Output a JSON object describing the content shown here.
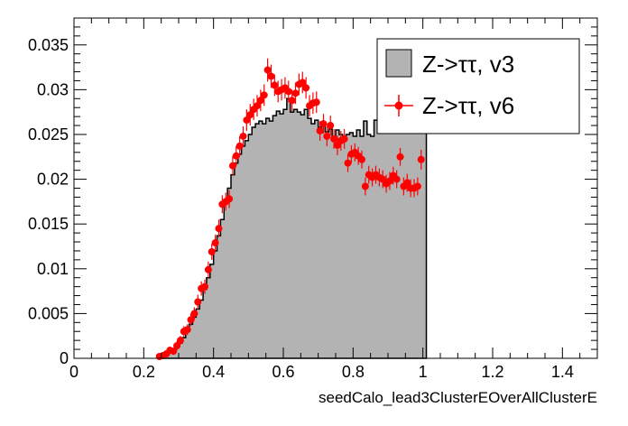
{
  "chart_data": {
    "type": "histogram",
    "title": "",
    "xlabel": "seedCalo_lead3ClusterEOverAllClusterE",
    "ylabel": "",
    "xlim": [
      0,
      1.5
    ],
    "ylim": [
      0,
      0.038
    ],
    "x_ticks": [
      0,
      0.2,
      0.4,
      0.6,
      0.8,
      1,
      1.2,
      1.4
    ],
    "x_tick_labels": [
      "0",
      "0.2",
      "0.4",
      "0.6",
      "0.8",
      "1",
      "1.2",
      "1.4"
    ],
    "y_ticks": [
      0,
      0.005,
      0.01,
      0.015,
      0.02,
      0.025,
      0.03,
      0.035
    ],
    "y_tick_labels": [
      "0",
      "0.005",
      "0.01",
      "0.015",
      "0.02",
      "0.025",
      "0.03",
      "0.035"
    ],
    "legend": {
      "position": "top-right",
      "entries": [
        "Z->ττ, v3",
        "Z->ττ, v6"
      ]
    },
    "series": [
      {
        "name": "Z->ττ, v3",
        "style": "filled-histogram",
        "color": "#b3b3b3",
        "bin_edges_start": 0.25,
        "bin_width": 0.01,
        "values": [
          0.0002,
          0.0004,
          0.0006,
          0.0008,
          0.0012,
          0.0017,
          0.0023,
          0.003,
          0.0038,
          0.0046,
          0.0055,
          0.0065,
          0.0077,
          0.009,
          0.0105,
          0.012,
          0.0137,
          0.0155,
          0.0173,
          0.019,
          0.0205,
          0.0218,
          0.0228,
          0.0237,
          0.0243,
          0.025,
          0.0258,
          0.0262,
          0.0265,
          0.0262,
          0.0268,
          0.0265,
          0.0271,
          0.0276,
          0.0273,
          0.0278,
          0.029,
          0.0275,
          0.0278,
          0.0275,
          0.0272,
          0.0278,
          0.0268,
          0.0262,
          0.0266,
          0.0258,
          0.0262,
          0.0253,
          0.0256,
          0.0248,
          0.0255,
          0.025,
          0.0246,
          0.025,
          0.0252,
          0.0248,
          0.0255,
          0.0248,
          0.0265,
          0.025,
          0.0248,
          0.0266,
          0.0257,
          0.0252,
          0.0265,
          0.0255,
          0.0262,
          0.0258,
          0.0265,
          0.0255,
          0.0255,
          0.0262,
          0.0252,
          0.0254,
          0.0262,
          0.0309
        ]
      },
      {
        "name": "Z->ττ, v6",
        "style": "markers-with-errors",
        "color": "#ff0000",
        "x": [
          0.245,
          0.255,
          0.265,
          0.275,
          0.285,
          0.295,
          0.305,
          0.315,
          0.325,
          0.335,
          0.345,
          0.355,
          0.365,
          0.375,
          0.385,
          0.395,
          0.405,
          0.415,
          0.425,
          0.435,
          0.445,
          0.455,
          0.465,
          0.475,
          0.485,
          0.495,
          0.505,
          0.515,
          0.525,
          0.535,
          0.545,
          0.555,
          0.565,
          0.575,
          0.585,
          0.595,
          0.605,
          0.615,
          0.625,
          0.635,
          0.645,
          0.655,
          0.665,
          0.675,
          0.685,
          0.695,
          0.705,
          0.715,
          0.725,
          0.735,
          0.745,
          0.755,
          0.765,
          0.775,
          0.785,
          0.795,
          0.805,
          0.815,
          0.825,
          0.835,
          0.845,
          0.855,
          0.865,
          0.875,
          0.885,
          0.895,
          0.905,
          0.915,
          0.925,
          0.935,
          0.945,
          0.955,
          0.965,
          0.975,
          0.985,
          0.995
        ],
        "y": [
          0.0002,
          0.0003,
          0.0005,
          0.0009,
          0.0008,
          0.0014,
          0.002,
          0.003,
          0.0032,
          0.0043,
          0.005,
          0.0063,
          0.0078,
          0.008,
          0.0099,
          0.0119,
          0.0129,
          0.0145,
          0.0172,
          0.0175,
          0.0178,
          0.0215,
          0.0226,
          0.0237,
          0.0248,
          0.0266,
          0.0272,
          0.0278,
          0.0282,
          0.0288,
          0.0294,
          0.0322,
          0.0315,
          0.0305,
          0.0298,
          0.03,
          0.0302,
          0.0298,
          0.0288,
          0.0296,
          0.0306,
          0.0308,
          0.0302,
          0.0282,
          0.0285,
          0.0286,
          0.0254,
          0.0262,
          0.0248,
          0.026,
          0.0245,
          0.0238,
          0.0243,
          0.0245,
          0.0218,
          0.0228,
          0.023,
          0.0226,
          0.0222,
          0.0192,
          0.0205,
          0.0202,
          0.0205,
          0.0202,
          0.02,
          0.0195,
          0.0198,
          0.0204,
          0.02,
          0.0225,
          0.0192,
          0.0196,
          0.019,
          0.019,
          0.0192,
          0.0222
        ],
        "y_err": [
          0.0002,
          0.0002,
          0.0003,
          0.0004,
          0.0004,
          0.0005,
          0.0005,
          0.0006,
          0.0006,
          0.0007,
          0.0007,
          0.0008,
          0.0008,
          0.0008,
          0.0009,
          0.0009,
          0.0009,
          0.001,
          0.001,
          0.001,
          0.001,
          0.0011,
          0.0011,
          0.0011,
          0.0011,
          0.0012,
          0.0012,
          0.0012,
          0.0012,
          0.0012,
          0.0012,
          0.0013,
          0.0013,
          0.0012,
          0.0012,
          0.0012,
          0.0012,
          0.0012,
          0.0012,
          0.0012,
          0.0012,
          0.0012,
          0.0012,
          0.0012,
          0.0012,
          0.0012,
          0.0011,
          0.0011,
          0.0011,
          0.0011,
          0.0011,
          0.0011,
          0.0011,
          0.0011,
          0.001,
          0.001,
          0.001,
          0.001,
          0.001,
          0.001,
          0.001,
          0.001,
          0.001,
          0.001,
          0.001,
          0.001,
          0.001,
          0.001,
          0.001,
          0.001,
          0.001,
          0.001,
          0.001,
          0.001,
          0.001,
          0.0011
        ]
      }
    ]
  }
}
